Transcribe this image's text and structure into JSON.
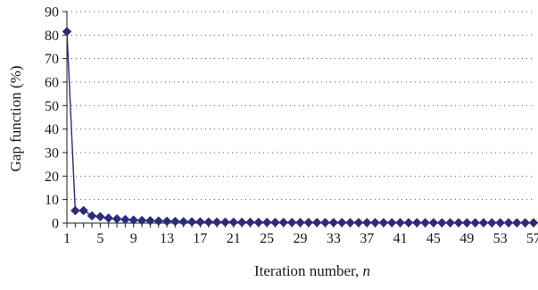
{
  "chart_data": {
    "type": "line",
    "xlabel": "Iteration number, ",
    "xlabel_var": "n",
    "ylabel": "Gap function (%)",
    "xlim": [
      1,
      57
    ],
    "ylim": [
      0,
      90
    ],
    "x_ticks": [
      1,
      5,
      9,
      13,
      17,
      21,
      25,
      29,
      33,
      37,
      41,
      45,
      49,
      53,
      57
    ],
    "y_ticks": [
      0,
      10,
      20,
      30,
      40,
      50,
      60,
      70,
      80,
      90
    ],
    "grid": "horizontal dotted",
    "legend": "none",
    "series": [
      {
        "color": "#2d2a7a",
        "marker": "diamond",
        "x": [
          1,
          2,
          3,
          4,
          5,
          6,
          7,
          8,
          9,
          10,
          11,
          12,
          13,
          14,
          15,
          16,
          17,
          18,
          19,
          20,
          21,
          22,
          23,
          24,
          25,
          26,
          27,
          28,
          29,
          30,
          31,
          32,
          33,
          34,
          35,
          36,
          37,
          38,
          39,
          40,
          41,
          42,
          43,
          44,
          45,
          46,
          47,
          48,
          49,
          50,
          51,
          52,
          53,
          54,
          55,
          56,
          57
        ],
        "y": [
          81.5,
          5.3,
          5.3,
          3.1,
          2.7,
          2.1,
          1.8,
          1.5,
          1.3,
          1.1,
          1.0,
          0.9,
          0.8,
          0.7,
          0.6,
          0.55,
          0.5,
          0.45,
          0.42,
          0.4,
          0.38,
          0.35,
          0.33,
          0.32,
          0.3,
          0.29,
          0.28,
          0.27,
          0.26,
          0.25,
          0.24,
          0.23,
          0.22,
          0.22,
          0.21,
          0.2,
          0.2,
          0.19,
          0.19,
          0.18,
          0.18,
          0.17,
          0.17,
          0.16,
          0.16,
          0.15,
          0.15,
          0.15,
          0.14,
          0.14,
          0.14,
          0.13,
          0.13,
          0.13,
          0.12,
          0.12,
          0.12
        ]
      }
    ]
  }
}
